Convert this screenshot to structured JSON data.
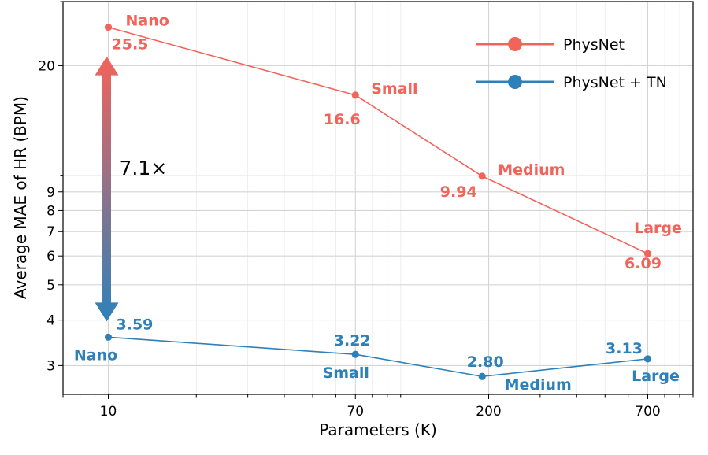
{
  "chart_data": {
    "type": "line",
    "xlabel": "Parameters (K)",
    "ylabel": "Average MAE of HR (BPM)",
    "xscale": "log",
    "yscale": "log",
    "xlim": [
      7,
      1000
    ],
    "ylim": [
      2.5,
      30
    ],
    "xticks": [
      10,
      70,
      200,
      700
    ],
    "yticks": [
      3,
      4,
      5,
      6,
      7,
      8,
      9,
      20
    ],
    "grid": true,
    "legend_position": "top-right",
    "series": [
      {
        "name": "PhysNet",
        "color": "#f2635a",
        "points": [
          {
            "x": 10,
            "y": 25.5,
            "value_label": "25.5",
            "size_label": "Nano"
          },
          {
            "x": 70,
            "y": 16.6,
            "value_label": "16.6",
            "size_label": "Small"
          },
          {
            "x": 190,
            "y": 9.94,
            "value_label": "9.94",
            "size_label": "Medium"
          },
          {
            "x": 700,
            "y": 6.09,
            "value_label": "6.09",
            "size_label": "Large"
          }
        ]
      },
      {
        "name": "PhysNet + TN",
        "color": "#2e81b8",
        "points": [
          {
            "x": 10,
            "y": 3.59,
            "value_label": "3.59",
            "size_label": "Nano"
          },
          {
            "x": 70,
            "y": 3.22,
            "value_label": "3.22",
            "size_label": "Small"
          },
          {
            "x": 190,
            "y": 2.8,
            "value_label": "2.80",
            "size_label": "Medium"
          },
          {
            "x": 700,
            "y": 3.13,
            "value_label": "3.13",
            "size_label": "Large"
          }
        ]
      }
    ],
    "annotations": [
      {
        "text": "7.1×",
        "type": "double-arrow",
        "from_y": 25.5,
        "to_y": 3.59,
        "x": 10
      }
    ]
  }
}
